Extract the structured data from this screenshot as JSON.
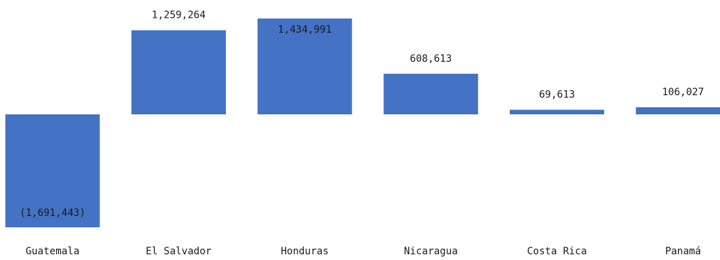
{
  "chart_data": {
    "type": "bar",
    "categories": [
      "Guatemala",
      "El Salvador",
      "Honduras",
      "Nicaragua",
      "Costa Rica",
      "Panamá"
    ],
    "values": [
      -1691443,
      1259264,
      1434991,
      608613,
      69613,
      106027
    ],
    "data_labels": [
      "(1,691,443)",
      "1,259,264",
      "1,434,991",
      "608,613",
      "69,613",
      "106,027"
    ],
    "title": "",
    "xlabel": "",
    "ylabel": "",
    "ylim": [
      -1700000,
      1500000
    ],
    "grid": false,
    "legend": "none",
    "bar_color": "#4472C4",
    "label_color": "#1a1a1a",
    "background_color": "#ffffff"
  }
}
